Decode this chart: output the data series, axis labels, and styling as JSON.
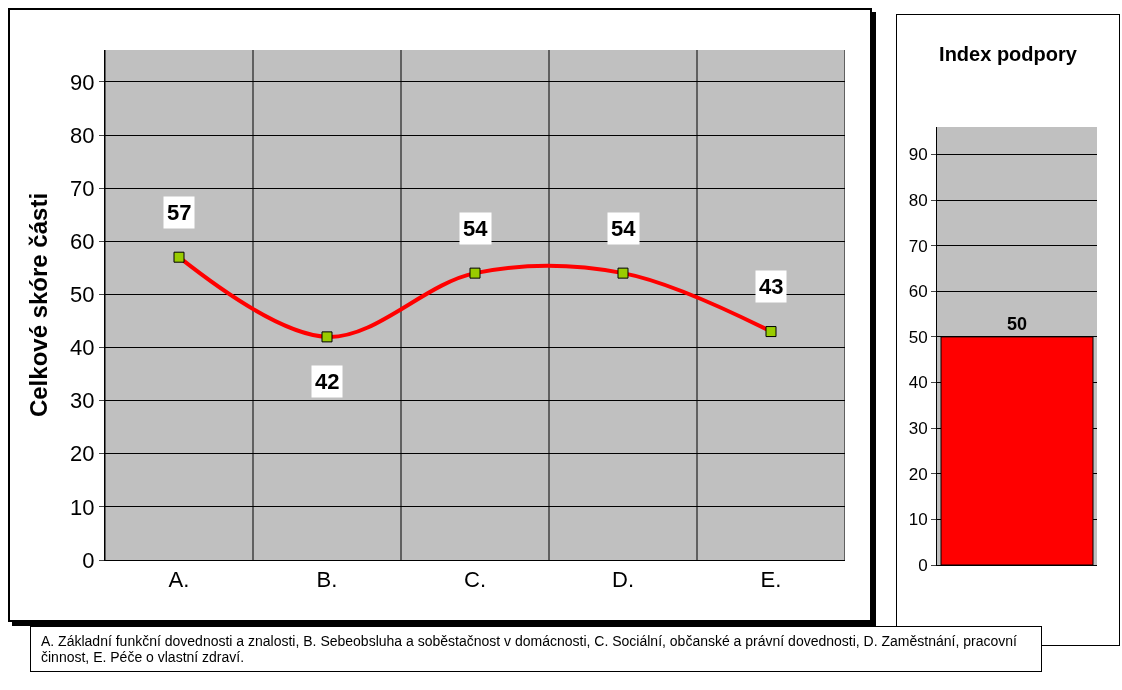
{
  "chart_data": [
    {
      "type": "line",
      "ylabel": "Celkové skóre části",
      "categories": [
        "A.",
        "B.",
        "C.",
        "D.",
        "E."
      ],
      "series": [
        {
          "color": "#ff0000",
          "values": [
            57,
            42,
            54,
            54,
            43
          ]
        }
      ],
      "marker": "square",
      "line_style": "solid",
      "ylim": [
        0,
        96
      ],
      "yticks": [
        0,
        10,
        20,
        30,
        40,
        50,
        60,
        70,
        80,
        90
      ],
      "grid": true,
      "data_labels": true,
      "legend": false,
      "annotations": [
        "A. Základní funkční dovednosti a znalosti, B. Sebeobsluha a soběstačnost v domácnosti, C. Sociální, občanské a právní dovednosti, D. Zaměstnání, pracovní činnost, E. Péče o vlastní zdraví."
      ]
    },
    {
      "type": "bar",
      "title": "Index podpory",
      "categories": [
        null
      ],
      "series": [
        {
          "color": "#ff0000",
          "values": [
            50
          ]
        }
      ],
      "ylim": [
        0,
        96
      ],
      "yticks": [
        0,
        10,
        20,
        30,
        40,
        50,
        60,
        70,
        80,
        90
      ],
      "grid": "y",
      "data_labels": true,
      "legend": false,
      "tick_labels": "y"
    }
  ]
}
